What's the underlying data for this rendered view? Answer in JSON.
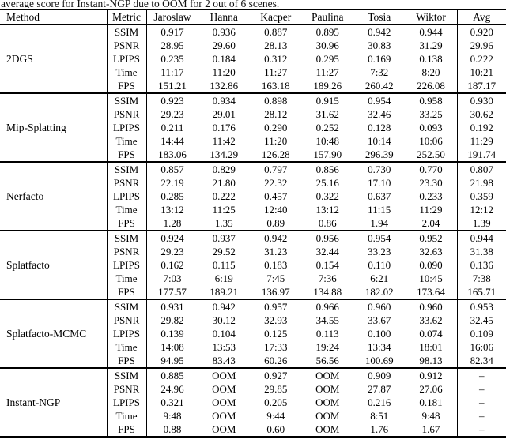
{
  "caption": "average score for Instant-NGP due to OOM for 2 out of 6 scenes.",
  "table": {
    "columns": [
      "Method",
      "Metric",
      "Jaroslaw",
      "Hanna",
      "Kacper",
      "Paulina",
      "Tosia",
      "Wiktor",
      "Avg"
    ],
    "groups": [
      {
        "method": "2DGS",
        "rows": [
          {
            "metric": "SSIM",
            "values": [
              "0.917",
              "0.936",
              "0.887",
              "0.895",
              "0.942",
              "0.944",
              "0.920"
            ],
            "bold": [
              0,
              0,
              0,
              0,
              0,
              0,
              0
            ]
          },
          {
            "metric": "PSNR",
            "values": [
              "28.95",
              "29.60",
              "28.13",
              "30.96",
              "30.83",
              "31.29",
              "29.96"
            ],
            "bold": [
              0,
              0,
              0,
              0,
              0,
              0,
              0
            ]
          },
          {
            "metric": "LPIPS",
            "values": [
              "0.235",
              "0.184",
              "0.312",
              "0.295",
              "0.169",
              "0.138",
              "0.222"
            ],
            "bold": [
              0,
              0,
              0,
              0,
              0,
              0,
              0
            ]
          },
          {
            "metric": "Time",
            "values": [
              "11:17",
              "11:20",
              "11:27",
              "11:27",
              "7:32",
              "8:20",
              "10:21"
            ],
            "bold": [
              0,
              0,
              0,
              0,
              0,
              1,
              0
            ]
          },
          {
            "metric": "FPS",
            "values": [
              "151.21",
              "132.86",
              "163.18",
              "189.26",
              "260.42",
              "226.08",
              "187.17"
            ],
            "bold": [
              0,
              0,
              1,
              1,
              0,
              0,
              0
            ]
          }
        ]
      },
      {
        "method": "Mip-Splatting",
        "rows": [
          {
            "metric": "SSIM",
            "values": [
              "0.923",
              "0.934",
              "0.898",
              "0.915",
              "0.954",
              "0.958",
              "0.930"
            ],
            "bold": [
              0,
              0,
              0,
              0,
              0,
              0,
              0
            ]
          },
          {
            "metric": "PSNR",
            "values": [
              "29.23",
              "29.01",
              "28.12",
              "31.62",
              "32.46",
              "33.25",
              "30.62"
            ],
            "bold": [
              0,
              0,
              0,
              0,
              0,
              0,
              0
            ]
          },
          {
            "metric": "LPIPS",
            "values": [
              "0.211",
              "0.176",
              "0.290",
              "0.252",
              "0.128",
              "0.093",
              "0.192"
            ],
            "bold": [
              0,
              0,
              0,
              0,
              0,
              0,
              0
            ]
          },
          {
            "metric": "Time",
            "values": [
              "14:44",
              "11:42",
              "11:20",
              "10:48",
              "10:14",
              "10:06",
              "11:29"
            ],
            "bold": [
              0,
              0,
              0,
              0,
              0,
              0,
              0
            ]
          },
          {
            "metric": "FPS",
            "values": [
              "183.06",
              "134.29",
              "126.28",
              "157.90",
              "296.39",
              "252.50",
              "191.74"
            ],
            "bold": [
              1,
              0,
              0,
              0,
              1,
              1,
              1
            ]
          }
        ]
      },
      {
        "method": "Nerfacto",
        "rows": [
          {
            "metric": "SSIM",
            "values": [
              "0.857",
              "0.829",
              "0.797",
              "0.856",
              "0.730",
              "0.770",
              "0.807"
            ],
            "bold": [
              0,
              0,
              0,
              0,
              0,
              0,
              0
            ]
          },
          {
            "metric": "PSNR",
            "values": [
              "22.19",
              "21.80",
              "22.32",
              "25.16",
              "17.10",
              "23.30",
              "21.98"
            ],
            "bold": [
              0,
              0,
              0,
              0,
              0,
              0,
              0
            ]
          },
          {
            "metric": "LPIPS",
            "values": [
              "0.285",
              "0.222",
              "0.457",
              "0.322",
              "0.637",
              "0.233",
              "0.359"
            ],
            "bold": [
              0,
              0,
              0,
              0,
              0,
              0,
              0
            ]
          },
          {
            "metric": "Time",
            "values": [
              "13:12",
              "11:25",
              "12:40",
              "13:12",
              "11:15",
              "11:29",
              "12:12"
            ],
            "bold": [
              0,
              0,
              0,
              0,
              0,
              0,
              0
            ]
          },
          {
            "metric": "FPS",
            "values": [
              "1.28",
              "1.35",
              "0.89",
              "0.86",
              "1.94",
              "2.04",
              "1.39"
            ],
            "bold": [
              0,
              0,
              0,
              0,
              0,
              0,
              0
            ]
          }
        ]
      },
      {
        "method": "Splatfacto",
        "rows": [
          {
            "metric": "SSIM",
            "values": [
              "0.924",
              "0.937",
              "0.942",
              "0.956",
              "0.954",
              "0.952",
              "0.944"
            ],
            "bold": [
              0,
              0,
              0,
              0,
              0,
              0,
              0
            ]
          },
          {
            "metric": "PSNR",
            "values": [
              "29.23",
              "29.52",
              "31.23",
              "32.44",
              "33.23",
              "32.63",
              "31.38"
            ],
            "bold": [
              0,
              0,
              0,
              0,
              0,
              0,
              0
            ]
          },
          {
            "metric": "LPIPS",
            "values": [
              "0.162",
              "0.115",
              "0.183",
              "0.154",
              "0.110",
              "0.090",
              "0.136"
            ],
            "bold": [
              0,
              0,
              0,
              0,
              0,
              0,
              0
            ]
          },
          {
            "metric": "Time",
            "values": [
              "7:03",
              "6:19",
              "7:45",
              "7:36",
              "6:21",
              "10:45",
              "7:38"
            ],
            "bold": [
              1,
              1,
              1,
              1,
              1,
              0,
              1
            ]
          },
          {
            "metric": "FPS",
            "values": [
              "177.57",
              "189.21",
              "136.97",
              "134.88",
              "182.02",
              "173.64",
              "165.71"
            ],
            "bold": [
              0,
              1,
              0,
              0,
              0,
              0,
              0
            ]
          }
        ]
      },
      {
        "method": "Splatfacto-MCMC",
        "rows": [
          {
            "metric": "SSIM",
            "values": [
              "0.931",
              "0.942",
              "0.957",
              "0.966",
              "0.960",
              "0.960",
              "0.953"
            ],
            "bold": [
              1,
              1,
              1,
              1,
              1,
              1,
              1
            ]
          },
          {
            "metric": "PSNR",
            "values": [
              "29.82",
              "30.12",
              "32.93",
              "34.55",
              "33.67",
              "33.62",
              "32.45"
            ],
            "bold": [
              1,
              1,
              1,
              1,
              1,
              1,
              1
            ]
          },
          {
            "metric": "LPIPS",
            "values": [
              "0.139",
              "0.104",
              "0.125",
              "0.113",
              "0.100",
              "0.074",
              "0.109"
            ],
            "bold": [
              1,
              1,
              1,
              1,
              1,
              1,
              1
            ]
          },
          {
            "metric": "Time",
            "values": [
              "14:08",
              "13:53",
              "17:33",
              "19:24",
              "13:34",
              "18:01",
              "16:06"
            ],
            "bold": [
              0,
              0,
              0,
              0,
              0,
              0,
              0
            ]
          },
          {
            "metric": "FPS",
            "values": [
              "94.95",
              "83.43",
              "60.26",
              "56.56",
              "100.69",
              "98.13",
              "82.34"
            ],
            "bold": [
              0,
              0,
              0,
              0,
              0,
              0,
              0
            ]
          }
        ]
      },
      {
        "method": "Instant-NGP",
        "rows": [
          {
            "metric": "SSIM",
            "values": [
              "0.885",
              "OOM",
              "0.927",
              "OOM",
              "0.909",
              "0.912",
              "–"
            ],
            "bold": [
              0,
              0,
              0,
              0,
              0,
              0,
              0
            ]
          },
          {
            "metric": "PSNR",
            "values": [
              "24.96",
              "OOM",
              "29.85",
              "OOM",
              "27.87",
              "27.06",
              "–"
            ],
            "bold": [
              0,
              0,
              0,
              0,
              0,
              0,
              0
            ]
          },
          {
            "metric": "LPIPS",
            "values": [
              "0.321",
              "OOM",
              "0.205",
              "OOM",
              "0.216",
              "0.181",
              "–"
            ],
            "bold": [
              0,
              0,
              0,
              0,
              0,
              0,
              0
            ]
          },
          {
            "metric": "Time",
            "values": [
              "9:48",
              "OOM",
              "9:44",
              "OOM",
              "8:51",
              "9:48",
              "–"
            ],
            "bold": [
              0,
              0,
              0,
              0,
              0,
              0,
              0
            ]
          },
          {
            "metric": "FPS",
            "values": [
              "0.88",
              "OOM",
              "0.60",
              "OOM",
              "1.76",
              "1.67",
              "–"
            ],
            "bold": [
              0,
              0,
              0,
              0,
              0,
              0,
              0
            ]
          }
        ]
      }
    ]
  }
}
